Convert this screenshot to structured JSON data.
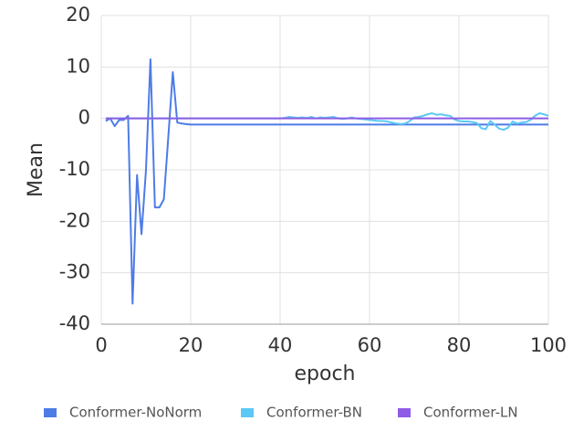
{
  "chart_data": {
    "type": "line",
    "xlabel": "epoch",
    "ylabel": "Mean",
    "x": [
      1,
      2,
      3,
      4,
      5,
      6,
      7,
      8,
      9,
      10,
      11,
      12,
      13,
      14,
      15,
      16,
      17,
      18,
      19,
      20,
      21,
      22,
      23,
      24,
      25,
      26,
      27,
      28,
      29,
      30,
      31,
      32,
      33,
      34,
      35,
      36,
      37,
      38,
      39,
      40,
      41,
      42,
      43,
      44,
      45,
      46,
      47,
      48,
      49,
      50,
      51,
      52,
      53,
      54,
      55,
      56,
      57,
      58,
      59,
      60,
      61,
      62,
      63,
      64,
      65,
      66,
      67,
      68,
      69,
      70,
      71,
      72,
      73,
      74,
      75,
      76,
      77,
      78,
      79,
      80,
      81,
      82,
      83,
      84,
      85,
      86,
      87,
      88,
      89,
      90,
      91,
      92,
      93,
      94,
      95,
      96,
      97,
      98,
      99,
      100
    ],
    "series": [
      {
        "name": "Conformer-NoNorm",
        "color": "#4e7ce6",
        "values": [
          -0.5,
          0,
          -1.5,
          -0.3,
          -0.3,
          0.5,
          -36,
          -11,
          -22.5,
          -10,
          11.5,
          -17.3,
          -17.3,
          -15.7,
          -3.5,
          9,
          -0.8,
          -1,
          -1.1,
          -1.2,
          -1.2,
          -1.2,
          -1.2,
          -1.2,
          -1.2,
          -1.2,
          -1.2,
          -1.2,
          -1.2,
          -1.2,
          -1.2,
          -1.2,
          -1.2,
          -1.2,
          -1.2,
          -1.2,
          -1.2,
          -1.2,
          -1.2,
          -1.2,
          -1.2,
          -1.2,
          -1.2,
          -1.2,
          -1.2,
          -1.2,
          -1.2,
          -1.2,
          -1.2,
          -1.2,
          -1.2,
          -1.2,
          -1.2,
          -1.2,
          -1.2,
          -1.2,
          -1.2,
          -1.2,
          -1.2,
          -1.2,
          -1.2,
          -1.2,
          -1.2,
          -1.2,
          -1.2,
          -1.2,
          -1.2,
          -1.2,
          -1.2,
          -1.2,
          -1.2,
          -1.2,
          -1.2,
          -1.2,
          -1.2,
          -1.2,
          -1.2,
          -1.2,
          -1.2,
          -1.2,
          -1.2,
          -1.2,
          -1.2,
          -1.2,
          -1.2,
          -1.2,
          -1.2,
          -1.2,
          -1.2,
          -1.2,
          -1.2,
          -1.2,
          -1.2,
          -1.2,
          -1.2,
          -1.2,
          -1.2,
          -1.2,
          -1.2,
          -1.2
        ]
      },
      {
        "name": "Conformer-BN",
        "color": "#5bc8f5",
        "values": [
          0,
          0,
          0,
          0,
          0,
          0,
          0,
          0,
          0,
          0,
          0,
          0,
          0,
          0,
          0,
          0,
          0,
          0,
          0,
          0,
          0,
          0,
          0,
          0,
          0,
          0,
          0,
          0,
          0,
          0,
          0,
          0,
          0,
          0,
          0,
          0,
          0,
          0,
          0,
          0,
          0.1,
          0.3,
          0.2,
          0.1,
          0.2,
          0.1,
          0.3,
          0,
          0.2,
          0.1,
          0.2,
          0.3,
          0,
          -0.1,
          0,
          0.2,
          0,
          -0.1,
          -0.2,
          -0.3,
          -0.4,
          -0.5,
          -0.5,
          -0.6,
          -0.8,
          -1,
          -1.1,
          -1,
          -0.5,
          0.2,
          0.3,
          0.5,
          0.8,
          1,
          0.7,
          0.8,
          0.6,
          0.5,
          -0.2,
          -0.5,
          -0.6,
          -0.6,
          -0.7,
          -0.9,
          -1.9,
          -2.1,
          -0.5,
          -1.2,
          -2,
          -2.2,
          -1.8,
          -0.6,
          -1,
          -0.8,
          -0.7,
          -0.3,
          0.5,
          1,
          0.8,
          0.5
        ]
      },
      {
        "name": "Conformer-LN",
        "color": "#8e5ce6",
        "values": [
          0,
          0,
          0,
          0,
          0,
          0,
          0,
          0,
          0,
          0,
          0,
          0,
          0,
          0,
          0,
          0,
          0,
          0,
          0,
          0,
          0,
          0,
          0,
          0,
          0,
          0,
          0,
          0,
          0,
          0,
          0,
          0,
          0,
          0,
          0,
          0,
          0,
          0,
          0,
          0,
          0,
          0,
          0,
          0,
          0,
          0,
          0,
          0,
          0,
          0,
          0,
          0,
          0,
          0,
          0,
          0,
          0,
          0,
          0,
          0,
          0,
          0,
          0,
          0,
          0,
          0,
          0,
          0,
          0,
          0,
          0,
          0,
          0,
          0,
          0,
          0,
          0,
          0,
          0,
          0,
          0,
          0,
          0,
          0,
          0,
          0,
          0,
          0,
          0,
          0,
          0,
          0,
          0,
          0,
          0,
          0,
          0,
          0,
          0,
          0
        ]
      }
    ],
    "xlim": [
      0,
      100
    ],
    "xticks": [
      0,
      20,
      40,
      60,
      80,
      100
    ],
    "ylim": [
      -40,
      20
    ],
    "yticks": [
      -40,
      -30,
      -20,
      -10,
      0,
      10,
      20
    ],
    "grid": true,
    "legend": "bottom"
  }
}
